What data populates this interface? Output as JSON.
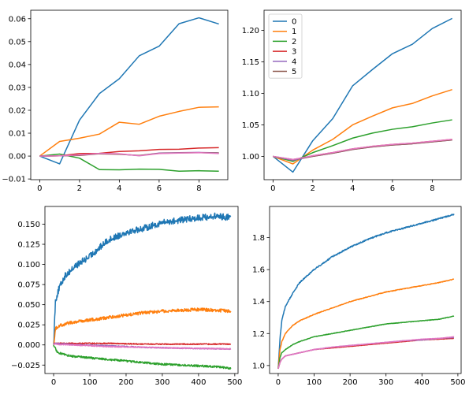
{
  "chart_data": [
    {
      "type": "line",
      "grid": false,
      "xlim": [
        -0.45,
        9.45
      ],
      "ylim": [
        -0.0103,
        0.0637
      ],
      "xticks": [
        0,
        2,
        4,
        6,
        8
      ],
      "xticklabels": [
        "0",
        "2",
        "4",
        "6",
        "8"
      ],
      "yticks": [
        -0.01,
        0.0,
        0.01,
        0.02,
        0.03,
        0.04,
        0.05,
        0.06
      ],
      "yticklabels": [
        "−0.01",
        "0.00",
        "0.01",
        "0.02",
        "0.03",
        "0.04",
        "0.05",
        "0.06"
      ],
      "x": [
        0,
        1,
        2,
        3,
        4,
        5,
        6,
        7,
        8,
        9
      ],
      "series": [
        {
          "color": "#1f77b4",
          "values": [
            0,
            -0.0034,
            0.0157,
            0.0273,
            0.0338,
            0.0438,
            0.048,
            0.0578,
            0.0604,
            0.0577
          ]
        },
        {
          "color": "#ff7f0e",
          "values": [
            0,
            0.0064,
            0.0078,
            0.0096,
            0.0148,
            0.0139,
            0.0174,
            0.0195,
            0.0213,
            0.0215
          ]
        },
        {
          "color": "#2ca02c",
          "values": [
            0,
            0.0009,
            -0.0009,
            -0.0059,
            -0.006,
            -0.0057,
            -0.0058,
            -0.0066,
            -0.0064,
            -0.0066
          ]
        },
        {
          "color": "#d62728",
          "values": [
            0,
            0.0001,
            0.0011,
            0.0012,
            0.002,
            0.0023,
            0.0029,
            0.003,
            0.0035,
            0.0037
          ]
        },
        {
          "color": "#9467bd",
          "values": [
            0,
            0.0001,
            0.0004,
            0.0011,
            0.0009,
            0.0002,
            0.0013,
            0.0015,
            0.0016,
            0.0014
          ]
        },
        {
          "color": "#8c564b",
          "values": [
            0,
            0.0001,
            0.0003,
            0.001,
            0.0008,
            0.0003,
            0.0012,
            0.0014,
            0.0015,
            0.0013
          ]
        },
        {
          "color": "#e377c2",
          "values": [
            0,
            0.0001,
            0.0005,
            0.0012,
            0.001,
            0.0001,
            0.0011,
            0.0013,
            0.0015,
            0.0011
          ]
        }
      ]
    },
    {
      "type": "line",
      "grid": false,
      "legend_position": "upper-left",
      "xlim": [
        -0.45,
        9.45
      ],
      "ylim": [
        0.963,
        1.232
      ],
      "xticks": [
        0,
        2,
        4,
        6,
        8
      ],
      "xticklabels": [
        "0",
        "2",
        "4",
        "6",
        "8"
      ],
      "yticks": [
        1.0,
        1.05,
        1.1,
        1.15,
        1.2
      ],
      "yticklabels": [
        "1.00",
        "1.05",
        "1.10",
        "1.15",
        "1.20"
      ],
      "x": [
        0,
        1,
        2,
        3,
        4,
        5,
        6,
        7,
        8,
        9
      ],
      "series": [
        {
          "name": "0",
          "color": "#1f77b4",
          "values": [
            1.0,
            0.975,
            1.025,
            1.06,
            1.112,
            1.138,
            1.163,
            1.178,
            1.203,
            1.219
          ]
        },
        {
          "name": "1",
          "color": "#ff7f0e",
          "values": [
            1.0,
            0.988,
            1.01,
            1.027,
            1.05,
            1.064,
            1.077,
            1.084,
            1.096,
            1.106
          ]
        },
        {
          "name": "2",
          "color": "#2ca02c",
          "values": [
            1.0,
            0.992,
            1.006,
            1.017,
            1.029,
            1.037,
            1.043,
            1.047,
            1.053,
            1.058
          ]
        },
        {
          "name": "3",
          "color": "#d62728",
          "values": [
            1.0,
            0.994,
            1.001,
            1.006,
            1.012,
            1.016,
            1.019,
            1.021,
            1.024,
            1.027
          ]
        },
        {
          "name": "4",
          "color": "#9467bd",
          "values": [
            1.0,
            0.994,
            1.0,
            1.005,
            1.011,
            1.015,
            1.018,
            1.02,
            1.023,
            1.026
          ]
        },
        {
          "name": "5",
          "color": "#8c564b",
          "values": [
            1.0,
            0.995,
            1.0,
            1.005,
            1.011,
            1.015,
            1.018,
            1.02,
            1.023,
            1.026
          ]
        },
        {
          "color": "#e377c2",
          "values": [
            1.0,
            0.995,
            1.001,
            1.006,
            1.012,
            1.016,
            1.019,
            1.021,
            1.024,
            1.027
          ]
        }
      ]
    },
    {
      "type": "line",
      "grid": false,
      "xlim": [
        -24,
        509
      ],
      "ylim": [
        -0.0355,
        0.172
      ],
      "xticks": [
        0,
        100,
        200,
        300,
        400,
        500
      ],
      "xticklabels": [
        "0",
        "100",
        "200",
        "300",
        "400",
        "500"
      ],
      "yticks": [
        -0.025,
        0.0,
        0.025,
        0.05,
        0.075,
        0.1,
        0.125,
        0.15
      ],
      "yticklabels": [
        "−0.025",
        "0.000",
        "0.025",
        "0.050",
        "0.075",
        "0.100",
        "0.125",
        "0.150"
      ],
      "n_points": 490,
      "series": [
        {
          "color": "#1f77b4",
          "x": [
            0,
            5,
            15,
            30,
            60,
            100,
            150,
            200,
            250,
            300,
            350,
            400,
            450,
            489
          ],
          "values": [
            0,
            0.055,
            0.07,
            0.085,
            0.098,
            0.11,
            0.13,
            0.14,
            0.145,
            0.152,
            0.155,
            0.158,
            0.16,
            0.158
          ],
          "noise": 0.004
        },
        {
          "color": "#ff7f0e",
          "x": [
            0,
            5,
            15,
            50,
            100,
            150,
            200,
            250,
            300,
            350,
            400,
            450,
            489
          ],
          "values": [
            0,
            0.02,
            0.024,
            0.028,
            0.031,
            0.034,
            0.037,
            0.04,
            0.042,
            0.043,
            0.044,
            0.043,
            0.042
          ],
          "noise": 0.002
        },
        {
          "color": "#2ca02c",
          "x": [
            0,
            10,
            30,
            50,
            100,
            150,
            200,
            250,
            300,
            350,
            400,
            450,
            489
          ],
          "values": [
            0,
            -0.009,
            -0.012,
            -0.014,
            -0.016,
            -0.018,
            -0.02,
            -0.022,
            -0.024,
            -0.025,
            -0.026,
            -0.027,
            -0.029
          ],
          "noise": 0.0012
        },
        {
          "color": "#d62728",
          "x": [
            0,
            50,
            150,
            250,
            350,
            489
          ],
          "values": [
            0.002,
            0.002,
            0.002,
            0.001,
            0.001,
            0.001
          ],
          "noise": 0.0006
        },
        {
          "color": "#9467bd",
          "x": [
            0,
            50,
            150,
            250,
            350,
            489
          ],
          "values": [
            0.002,
            0.0005,
            -0.001,
            -0.003,
            -0.004,
            -0.005
          ],
          "noise": 0.0006
        },
        {
          "color": "#e377c2",
          "x": [
            0,
            50,
            150,
            250,
            350,
            489
          ],
          "values": [
            0.001,
            0.0,
            -0.002,
            -0.003,
            -0.004,
            -0.005
          ],
          "noise": 0.0006
        }
      ]
    },
    {
      "type": "line",
      "grid": false,
      "xlim": [
        -24,
        509
      ],
      "ylim": [
        0.95,
        1.995
      ],
      "xticks": [
        0,
        100,
        200,
        300,
        400,
        500
      ],
      "xticklabels": [
        "0",
        "100",
        "200",
        "300",
        "400",
        "500"
      ],
      "yticks": [
        1.0,
        1.2,
        1.4,
        1.6,
        1.8
      ],
      "yticklabels": [
        "1.0",
        "1.2",
        "1.4",
        "1.6",
        "1.8"
      ],
      "n_points": 490,
      "series": [
        {
          "color": "#1f77b4",
          "x": [
            0,
            5,
            10,
            20,
            40,
            60,
            100,
            150,
            200,
            250,
            300,
            350,
            400,
            450,
            489
          ],
          "values": [
            0.98,
            1.17,
            1.28,
            1.37,
            1.45,
            1.52,
            1.6,
            1.68,
            1.74,
            1.79,
            1.83,
            1.86,
            1.89,
            1.92,
            1.945
          ],
          "noise": 0.004
        },
        {
          "color": "#ff7f0e",
          "x": [
            0,
            5,
            10,
            20,
            40,
            60,
            100,
            150,
            200,
            250,
            300,
            350,
            400,
            450,
            489
          ],
          "values": [
            0.98,
            1.1,
            1.15,
            1.2,
            1.25,
            1.28,
            1.32,
            1.36,
            1.4,
            1.43,
            1.46,
            1.48,
            1.5,
            1.52,
            1.54
          ],
          "noise": 0.002
        },
        {
          "color": "#2ca02c",
          "x": [
            0,
            5,
            10,
            20,
            40,
            60,
            100,
            150,
            200,
            250,
            300,
            350,
            400,
            450,
            489
          ],
          "values": [
            0.98,
            1.05,
            1.08,
            1.1,
            1.13,
            1.15,
            1.18,
            1.2,
            1.22,
            1.24,
            1.26,
            1.27,
            1.28,
            1.29,
            1.31
          ],
          "noise": 0.0015
        },
        {
          "color": "#d62728",
          "x": [
            0,
            5,
            10,
            20,
            40,
            60,
            100,
            150,
            200,
            250,
            300,
            350,
            400,
            450,
            489
          ],
          "values": [
            0.98,
            1.02,
            1.04,
            1.06,
            1.07,
            1.08,
            1.1,
            1.11,
            1.12,
            1.13,
            1.14,
            1.15,
            1.16,
            1.165,
            1.17
          ],
          "noise": 0.001
        },
        {
          "color": "#9467bd",
          "x": [
            0,
            5,
            10,
            20,
            40,
            60,
            100,
            150,
            200,
            250,
            300,
            350,
            400,
            450,
            489
          ],
          "values": [
            0.98,
            1.02,
            1.04,
            1.06,
            1.07,
            1.08,
            1.1,
            1.115,
            1.125,
            1.135,
            1.145,
            1.155,
            1.16,
            1.17,
            1.175
          ],
          "noise": 0.001
        },
        {
          "color": "#e377c2",
          "x": [
            0,
            5,
            10,
            20,
            40,
            60,
            100,
            150,
            200,
            250,
            300,
            350,
            400,
            450,
            489
          ],
          "values": [
            0.98,
            1.02,
            1.04,
            1.06,
            1.07,
            1.08,
            1.1,
            1.115,
            1.125,
            1.135,
            1.145,
            1.155,
            1.165,
            1.17,
            1.18
          ],
          "noise": 0.001
        }
      ]
    }
  ]
}
